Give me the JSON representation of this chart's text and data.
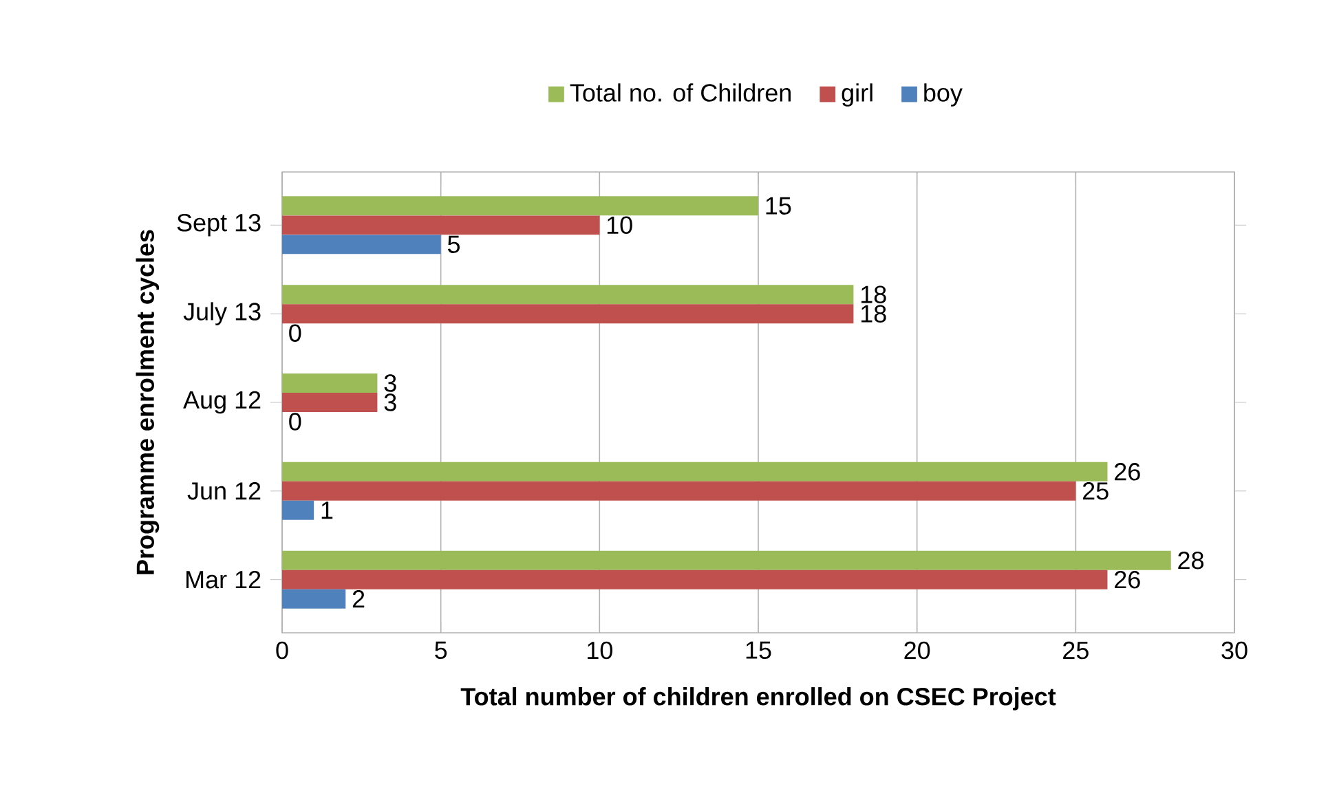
{
  "chart_data": {
    "type": "bar",
    "orientation": "horizontal",
    "xlabel": "Total number of children enrolled on CSEC Project",
    "ylabel": "Programme enrolment cycles",
    "categories": [
      "Sept 13",
      "July 13",
      "Aug 12",
      "Jun 12",
      "Mar 12"
    ],
    "series": [
      {
        "name": "Total no. of Children",
        "color": "#9bbb59",
        "values": [
          15,
          18,
          3,
          26,
          28
        ]
      },
      {
        "name": "girl",
        "color": "#c0504d",
        "values": [
          10,
          18,
          3,
          25,
          26
        ]
      },
      {
        "name": "boy",
        "color": "#4f81bd",
        "values": [
          5,
          0,
          0,
          1,
          2
        ]
      }
    ],
    "xlim": [
      0,
      30
    ],
    "xticks": [
      0,
      5,
      10,
      15,
      20,
      25,
      30
    ],
    "grid": "x",
    "legend": "top",
    "data_labels": true
  }
}
